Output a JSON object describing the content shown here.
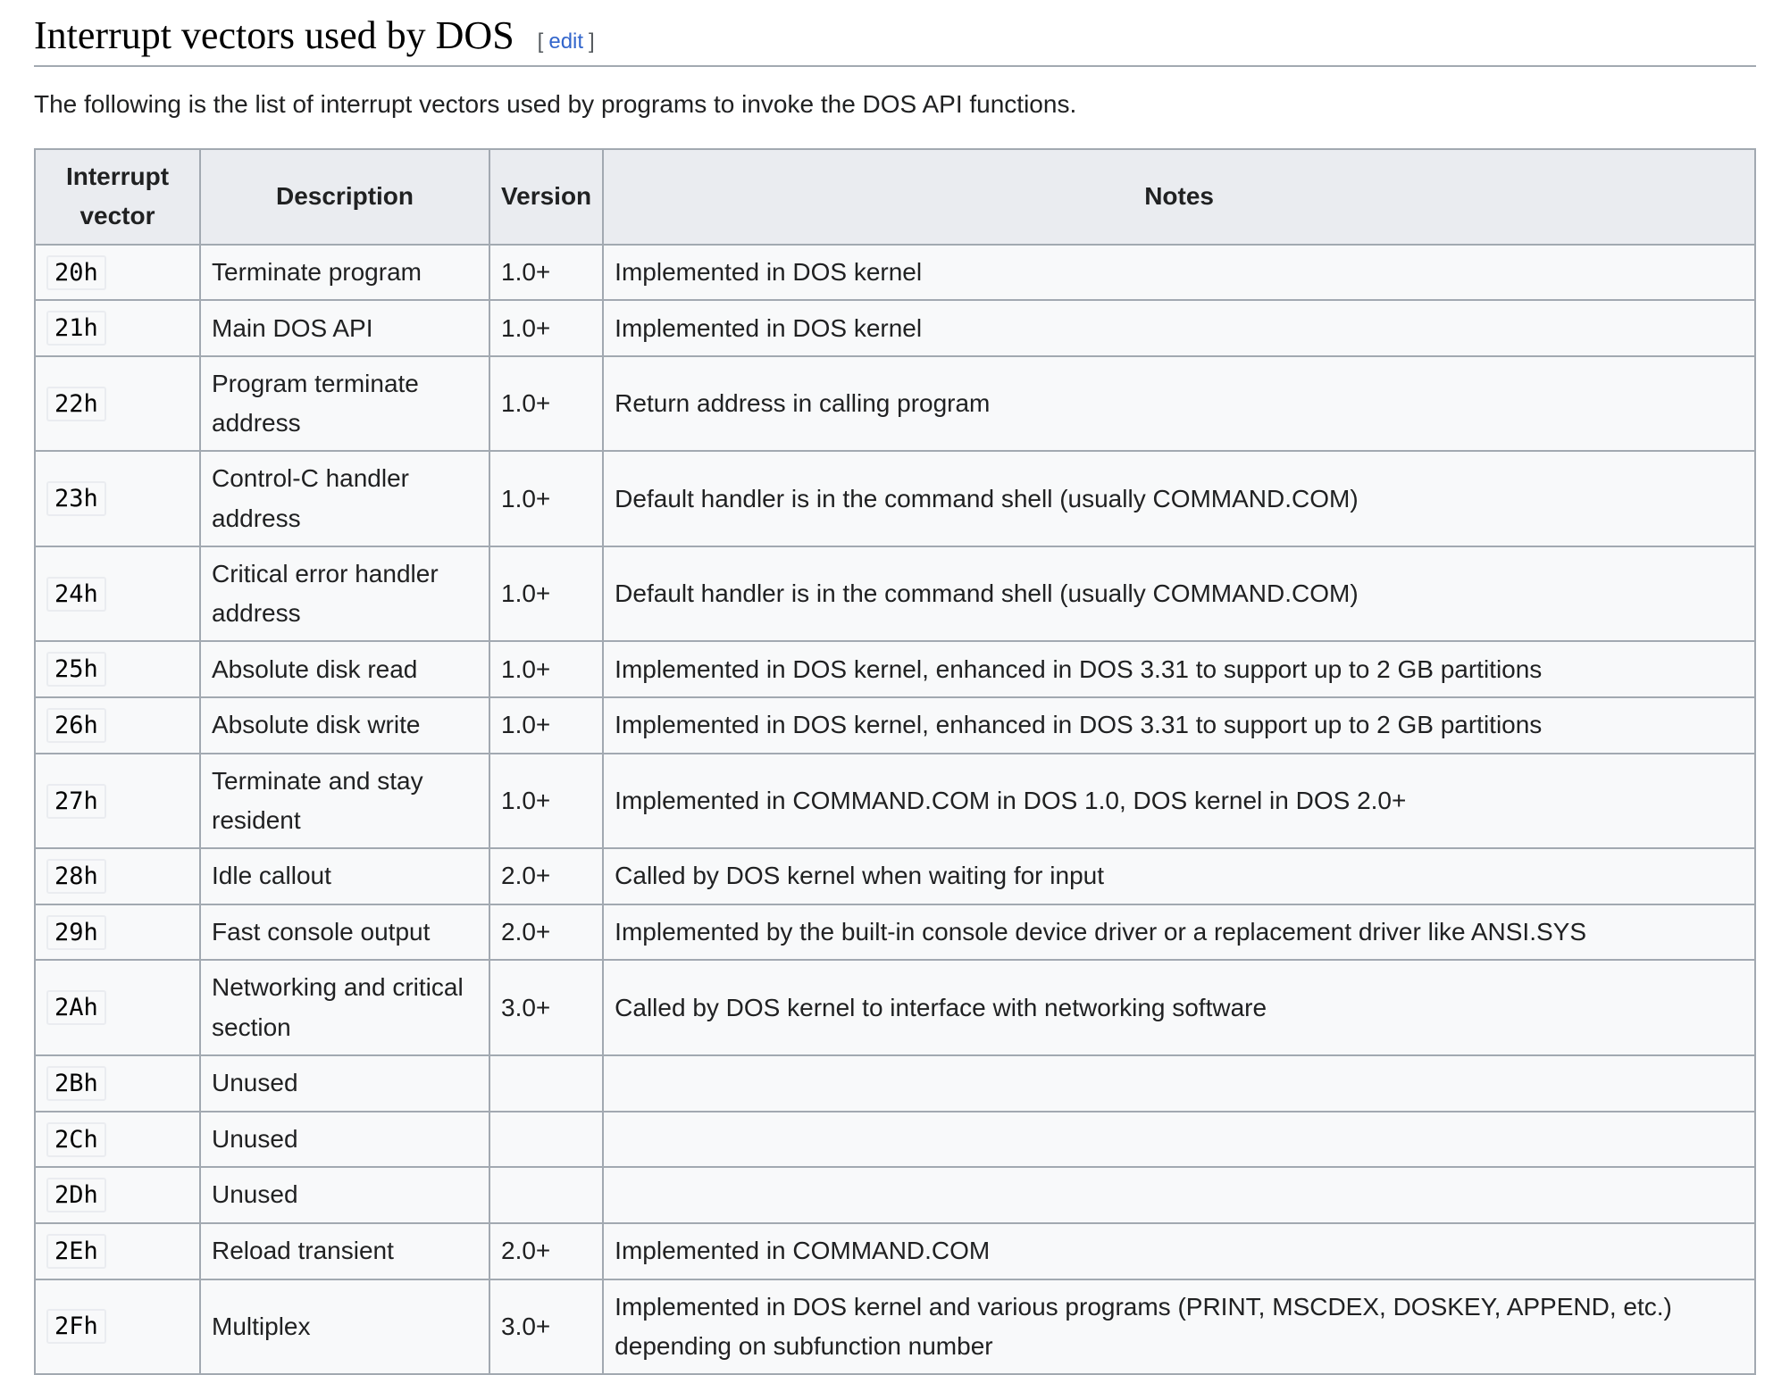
{
  "section": {
    "title": "Interrupt vectors used by DOS",
    "edit_open": "[",
    "edit_label": "edit",
    "edit_close": "]",
    "intro": "The following is the list of interrupt vectors used by programs to invoke the DOS API functions."
  },
  "table": {
    "headers": [
      "Interrupt vector",
      "Description",
      "Version",
      "Notes"
    ],
    "rows": [
      {
        "vector": "20h",
        "description": "Terminate program",
        "version": "1.0+",
        "notes": "Implemented in DOS kernel"
      },
      {
        "vector": "21h",
        "description": "Main DOS API",
        "version": "1.0+",
        "notes": "Implemented in DOS kernel"
      },
      {
        "vector": "22h",
        "description": "Program terminate address",
        "version": "1.0+",
        "notes": "Return address in calling program"
      },
      {
        "vector": "23h",
        "description": "Control-C handler address",
        "version": "1.0+",
        "notes": "Default handler is in the command shell (usually COMMAND.COM)"
      },
      {
        "vector": "24h",
        "description": "Critical error handler address",
        "version": "1.0+",
        "notes": "Default handler is in the command shell (usually COMMAND.COM)"
      },
      {
        "vector": "25h",
        "description": "Absolute disk read",
        "version": "1.0+",
        "notes": "Implemented in DOS kernel, enhanced in DOS 3.31 to support up to 2 GB partitions"
      },
      {
        "vector": "26h",
        "description": "Absolute disk write",
        "version": "1.0+",
        "notes": "Implemented in DOS kernel, enhanced in DOS 3.31 to support up to 2 GB partitions"
      },
      {
        "vector": "27h",
        "description": "Terminate and stay resident",
        "version": "1.0+",
        "notes": "Implemented in COMMAND.COM in DOS 1.0, DOS kernel in DOS 2.0+"
      },
      {
        "vector": "28h",
        "description": "Idle callout",
        "version": "2.0+",
        "notes": "Called by DOS kernel when waiting for input"
      },
      {
        "vector": "29h",
        "description": "Fast console output",
        "version": "2.0+",
        "notes": "Implemented by the built-in console device driver or a replacement driver like ANSI.SYS"
      },
      {
        "vector": "2Ah",
        "description": "Networking and critical section",
        "version": "3.0+",
        "notes": "Called by DOS kernel to interface with networking software"
      },
      {
        "vector": "2Bh",
        "description": "Unused",
        "version": "",
        "notes": ""
      },
      {
        "vector": "2Ch",
        "description": "Unused",
        "version": "",
        "notes": ""
      },
      {
        "vector": "2Dh",
        "description": "Unused",
        "version": "",
        "notes": ""
      },
      {
        "vector": "2Eh",
        "description": "Reload transient",
        "version": "2.0+",
        "notes": "Implemented in COMMAND.COM"
      },
      {
        "vector": "2Fh",
        "description": "Multiplex",
        "version": "3.0+",
        "notes": "Implemented in DOS kernel and various programs (PRINT, MSCDEX, DOSKEY, APPEND, etc.) depending on subfunction number"
      }
    ]
  }
}
